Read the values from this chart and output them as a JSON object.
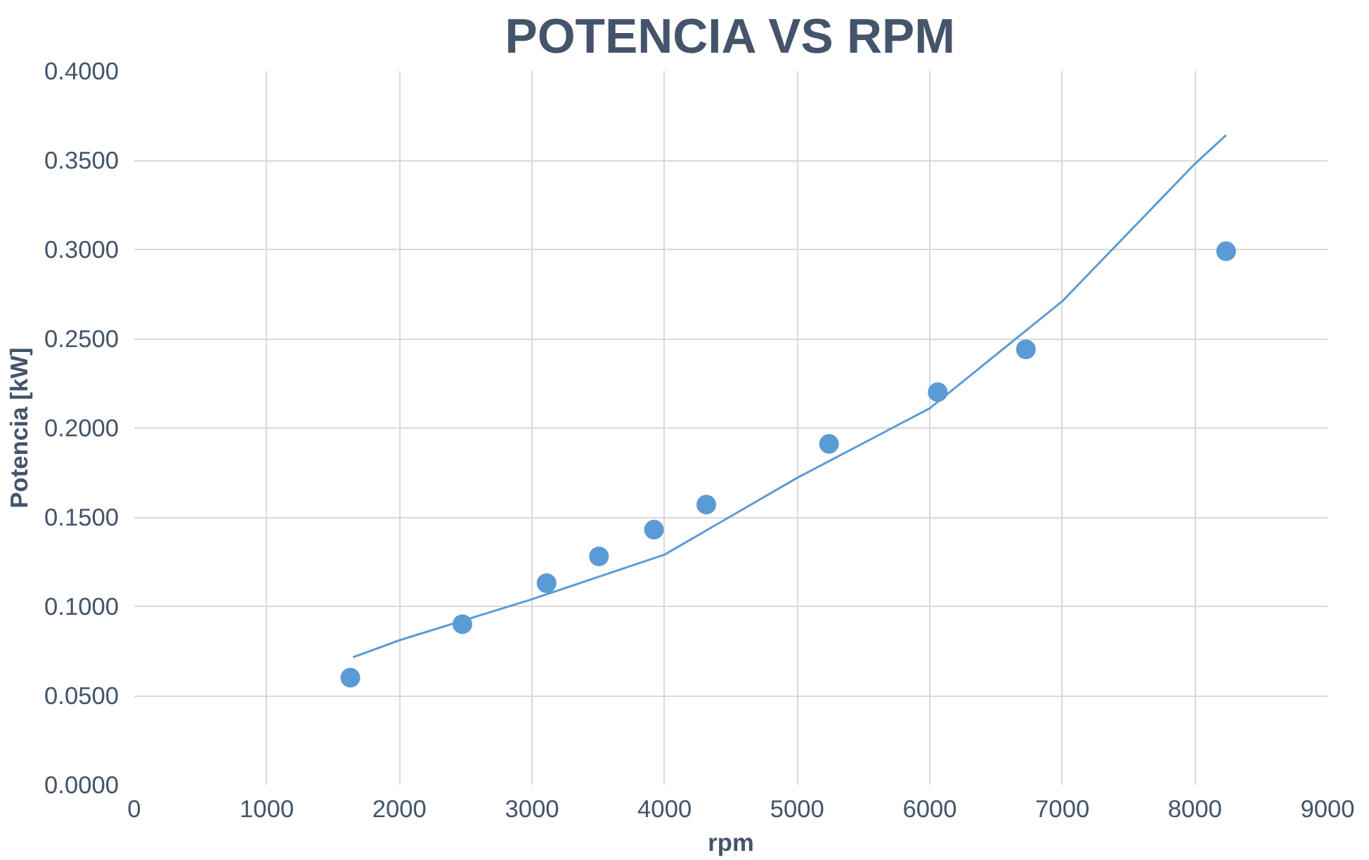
{
  "chart_data": {
    "type": "scatter",
    "title": "POTENCIA VS RPM",
    "xlabel": "rpm",
    "ylabel": "Potencia [kW]",
    "x": [
      1630,
      2475,
      3110,
      3505,
      3920,
      4315,
      5240,
      6060,
      6725,
      8235
    ],
    "xlim": [
      0,
      9000
    ],
    "xticks": [
      0,
      1000,
      2000,
      3000,
      4000,
      5000,
      6000,
      7000,
      8000,
      9000
    ],
    "ylim": [
      0,
      0.4
    ],
    "yticks": [
      {
        "value": 0,
        "label": "0.0000"
      },
      {
        "value": 0.05,
        "label": "0.0500"
      },
      {
        "value": 0.1,
        "label": "0.1000"
      },
      {
        "value": 0.15,
        "label": "0.1500"
      },
      {
        "value": 0.2,
        "label": "0.2000"
      },
      {
        "value": 0.25,
        "label": "0.2500"
      },
      {
        "value": 0.3,
        "label": "0.3000"
      },
      {
        "value": 0.35,
        "label": "0.3500"
      },
      {
        "value": 0.4,
        "label": "0.4000"
      }
    ],
    "grid": true,
    "series": [
      {
        "marker": "circle",
        "color": "#5b9bd5",
        "values": [
          0.06,
          0.09,
          0.113,
          0.128,
          0.143,
          0.157,
          0.191,
          0.22,
          0.244,
          0.299
        ]
      },
      {
        "type": "line",
        "color": "#5b9bd5",
        "x": [
          1650,
          2000,
          3000,
          4000,
          5000,
          6000,
          7000,
          8000,
          8235
        ],
        "values": [
          0.0715,
          0.081,
          0.104,
          0.129,
          0.172,
          0.211,
          0.271,
          0.348,
          0.364
        ]
      }
    ]
  }
}
